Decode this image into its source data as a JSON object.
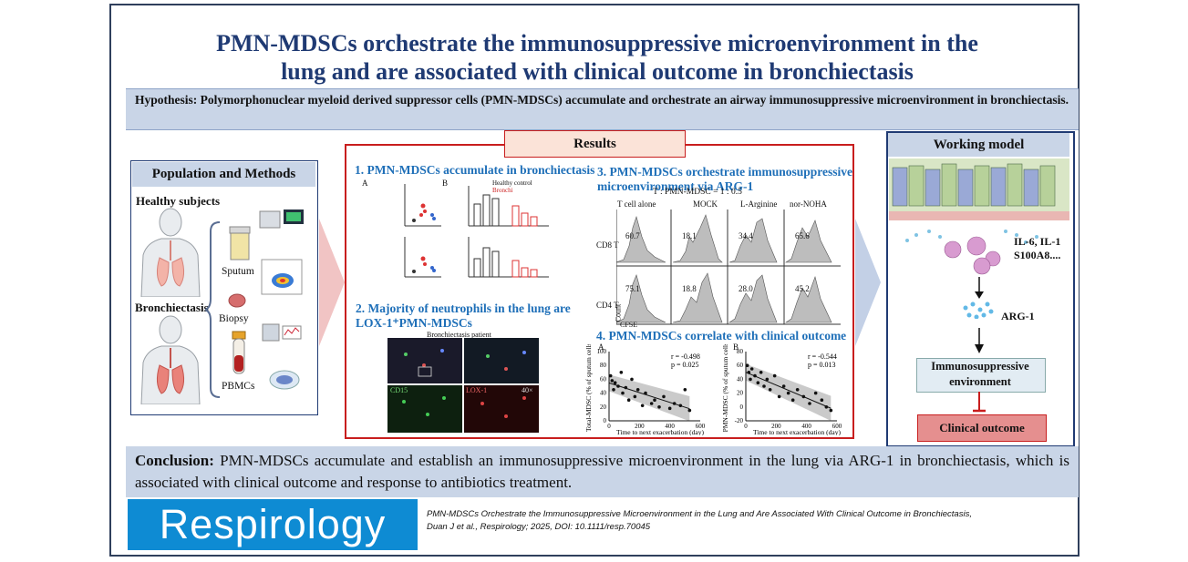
{
  "title": {
    "line1": "PMN-MDSCs orchestrate the immunosuppressive microenvironment in the",
    "line2": "lung and are associated with clinical outcome in bronchiectasis"
  },
  "hypothesis": "Hypothesis: Polymorphonuclear myeloid derived suppressor cells (PMN-MDSCs) accumulate and orchestrate an airway immunosuppressive microenvironment in bronchiectasis.",
  "population": {
    "heading": "Population and Methods",
    "healthy": "Healthy subjects",
    "bronchiectasis": "Bronchiectasis",
    "sputum": "Sputum",
    "biopsy": "Biopsy",
    "pbmcs": "PBMCs"
  },
  "results": {
    "heading": "Results",
    "r1": "1. PMN-MDSCs accumulate in bronchiectasis",
    "r2_line1": "2. Majority of neutrophils in the lung are",
    "r2_line2": "LOX-1⁺PMN-MDSCs",
    "r3_line1": "3. PMN-MDSCs orchestrate immunosuppressive",
    "r3_line2": "microenvironment via ARG-1",
    "r4": "4. PMN-MDSCs correlate with clinical outcome",
    "bronchi_patient": "Bronchiectasis patient",
    "legend_healthy": "Healthy control",
    "legend_bronchi": "Bronchi",
    "panel_a": "A",
    "panel_b": "B",
    "ratio": "T : PMN-MDSC = 1 : 0.5",
    "cols": [
      "T cell alone",
      "MOCK",
      "L-Arginine",
      "nor-NOHA"
    ],
    "rows": [
      "CD8 T",
      "CD4 T"
    ],
    "cd8_vals": [
      "60.7",
      "18.1",
      "34.4",
      "65.6"
    ],
    "cd4_vals": [
      "75.1",
      "18.8",
      "28.0",
      "45.2"
    ],
    "count_label": "Count",
    "cfse_label": "CFSE",
    "if_labels": [
      "CD15",
      "LOX-1",
      "40×"
    ]
  },
  "chart_data": [
    {
      "type": "scatter",
      "panel": "A",
      "ylabel": "Total-MDSC (% of sputum cells)",
      "xlabel": "Time to next exacerbation (day)",
      "xlim": [
        0,
        600
      ],
      "ylim": [
        0,
        100
      ],
      "xticks": [
        0,
        200,
        400,
        600
      ],
      "yticks": [
        0,
        20,
        40,
        60,
        80,
        100
      ],
      "r": "r = -0.498",
      "p": "p = 0.025",
      "points": [
        [
          10,
          65
        ],
        [
          20,
          58
        ],
        [
          30,
          45
        ],
        [
          40,
          55
        ],
        [
          60,
          50
        ],
        [
          80,
          70
        ],
        [
          90,
          40
        ],
        [
          110,
          48
        ],
        [
          130,
          30
        ],
        [
          150,
          60
        ],
        [
          170,
          35
        ],
        [
          190,
          45
        ],
        [
          220,
          22
        ],
        [
          240,
          40
        ],
        [
          280,
          25
        ],
        [
          300,
          30
        ],
        [
          330,
          20
        ],
        [
          360,
          35
        ],
        [
          400,
          18
        ],
        [
          430,
          25
        ],
        [
          470,
          22
        ],
        [
          500,
          45
        ],
        [
          530,
          15
        ]
      ]
    },
    {
      "type": "scatter",
      "panel": "B",
      "ylabel": "PMN-MDSC (% of sputum cells)",
      "xlabel": "Time to next exacerbation (day)",
      "xlim": [
        0,
        600
      ],
      "ylim": [
        -20,
        80
      ],
      "xticks": [
        0,
        200,
        400,
        600
      ],
      "yticks": [
        -20,
        0,
        20,
        40,
        60,
        80
      ],
      "r": "r = -0.544",
      "p": "p = 0.013",
      "points": [
        [
          10,
          60
        ],
        [
          20,
          50
        ],
        [
          30,
          40
        ],
        [
          40,
          55
        ],
        [
          60,
          45
        ],
        [
          80,
          35
        ],
        [
          100,
          50
        ],
        [
          120,
          30
        ],
        [
          140,
          40
        ],
        [
          160,
          25
        ],
        [
          190,
          45
        ],
        [
          220,
          15
        ],
        [
          250,
          30
        ],
        [
          280,
          20
        ],
        [
          310,
          10
        ],
        [
          340,
          25
        ],
        [
          380,
          15
        ],
        [
          420,
          5
        ],
        [
          460,
          20
        ],
        [
          500,
          10
        ],
        [
          530,
          0
        ],
        [
          560,
          -5
        ]
      ]
    }
  ],
  "model": {
    "heading": "Working model",
    "cytokines_line1": "IL-6, IL-1",
    "cytokines_line2": "S100A8....",
    "arg": "ARG-1",
    "immuno_line1": "Immunosuppressive",
    "immuno_line2": "environment",
    "outcome": "Clinical outcome"
  },
  "conclusion": {
    "label": "Conclusion:",
    "text": " PMN-MDSCs accumulate and establish an immunosuppressive microenvironment in the lung via ARG-1 in bronchiectasis, which is associated with clinical outcome and response to antibiotics treatment."
  },
  "footer": {
    "logo": "Respirology",
    "citation_line1": "PMN-MDSCs Orchestrate the Immunosuppressive Microenvironment in the Lung and Are Associated With Clinical Outcome in Bronchiectasis,",
    "citation_line2": "Duan J et al., Respirology; 2025, DOI: 10.1111/resp.70045"
  }
}
